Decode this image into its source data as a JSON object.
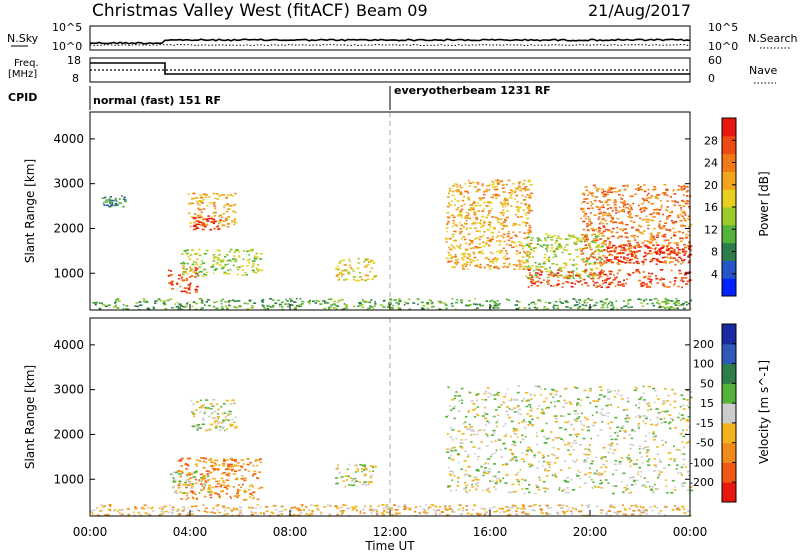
{
  "header": {
    "station": "Christmas Valley West (fitACF)",
    "beam": "Beam 09",
    "date": "21/Aug/2017"
  },
  "nsky": {
    "label": "N.Sky",
    "ticks": [
      "10^5",
      "10^0"
    ],
    "right_ticks": [
      "10^5",
      "10^0"
    ],
    "search_label": "N.Search"
  },
  "freq": {
    "label_line1": "Freq.",
    "label_line2": "[MHz]",
    "ticks": [
      "18",
      "8"
    ],
    "right_ticks": [
      "60",
      "0"
    ],
    "nave_label": "Nave"
  },
  "cpid": {
    "label": "CPID",
    "segments": [
      {
        "start_hour": 0,
        "text": "normal (fast) 151 RF"
      },
      {
        "start_hour": 12,
        "text": "everyotherbeam 1231 RF"
      }
    ]
  },
  "chart_data": [
    {
      "type": "heatmap",
      "panel": "power",
      "ylabel": "Slant Range [km]",
      "yticks": [
        1000,
        2000,
        3000,
        4000
      ],
      "ylim": [
        180,
        4600
      ],
      "xlim_hours": [
        0,
        24
      ],
      "colorbar": {
        "label": "Power [dB]",
        "ticks": [
          "4",
          "8",
          "12",
          "16",
          "20",
          "24",
          "28"
        ],
        "colors": [
          "#0022ff",
          "#2555c8",
          "#2f7d4a",
          "#55b23a",
          "#9ccc2a",
          "#e8d020",
          "#f2a41a",
          "#f07a1a",
          "#ee4a14",
          "#e8180e"
        ]
      },
      "echo_regions": [
        {
          "t0": 0.4,
          "t1": 1.4,
          "r0": 2500,
          "r1": 2750,
          "level": 2
        },
        {
          "t0": 3.1,
          "t1": 4.3,
          "r0": 550,
          "r1": 1150,
          "level": 8
        },
        {
          "t0": 3.6,
          "t1": 6.8,
          "r0": 950,
          "r1": 1550,
          "level": 4
        },
        {
          "t0": 3.9,
          "t1": 5.8,
          "r0": 2050,
          "r1": 2800,
          "level": 6
        },
        {
          "t0": 4.1,
          "t1": 5.2,
          "r0": 1950,
          "r1": 2300,
          "level": 9
        },
        {
          "t0": 9.8,
          "t1": 11.4,
          "r0": 850,
          "r1": 1350,
          "level": 5
        },
        {
          "t0": 14.2,
          "t1": 17.6,
          "r0": 1100,
          "r1": 3100,
          "level": 6
        },
        {
          "t0": 17.4,
          "t1": 20.5,
          "r0": 900,
          "r1": 1900,
          "level": 4
        },
        {
          "t0": 19.6,
          "t1": 24,
          "r0": 1200,
          "r1": 3000,
          "level": 7
        },
        {
          "t0": 20.5,
          "t1": 24,
          "r0": 1250,
          "r1": 1650,
          "level": 9
        },
        {
          "t0": 17.5,
          "t1": 24,
          "r0": 700,
          "r1": 1100,
          "level": 8
        },
        {
          "t0": 0,
          "t1": 24,
          "r0": 200,
          "r1": 450,
          "level": 3
        }
      ]
    },
    {
      "type": "heatmap",
      "panel": "velocity",
      "ylabel": "Slant Range [km]",
      "yticks": [
        1000,
        2000,
        3000,
        4000
      ],
      "ylim": [
        180,
        4600
      ],
      "xlim_hours": [
        0,
        24
      ],
      "colorbar": {
        "label": "Velocity [m s^-1]",
        "ticks": [
          "200",
          "100",
          "50",
          "15",
          "-15",
          "-50",
          "-100",
          "-200"
        ],
        "colors": [
          "#1a2aa0",
          "#2f58b8",
          "#2f7d4a",
          "#55b23a",
          "#cccccc",
          "#f2b41a",
          "#f08a1a",
          "#ee5a14",
          "#e8180e"
        ]
      },
      "echo_regions": [
        {
          "t0": 3.5,
          "t1": 6.8,
          "r0": 550,
          "r1": 1500,
          "level": 6
        },
        {
          "t0": 3.2,
          "t1": 4.8,
          "r0": 700,
          "r1": 1200,
          "level": 4
        },
        {
          "t0": 4.0,
          "t1": 5.8,
          "r0": 2100,
          "r1": 2800,
          "level": 4
        },
        {
          "t0": 9.8,
          "t1": 11.4,
          "r0": 850,
          "r1": 1350,
          "level": 4
        },
        {
          "t0": 14.2,
          "t1": 24,
          "r0": 700,
          "r1": 3100,
          "level": 4
        },
        {
          "t0": 0,
          "t1": 24,
          "r0": 200,
          "r1": 450,
          "level": 5
        }
      ]
    }
  ],
  "time_axis": {
    "ticks": [
      "00:00",
      "04:00",
      "08:00",
      "12:00",
      "16:00",
      "20:00",
      "00:00"
    ],
    "label": "Time UT"
  }
}
